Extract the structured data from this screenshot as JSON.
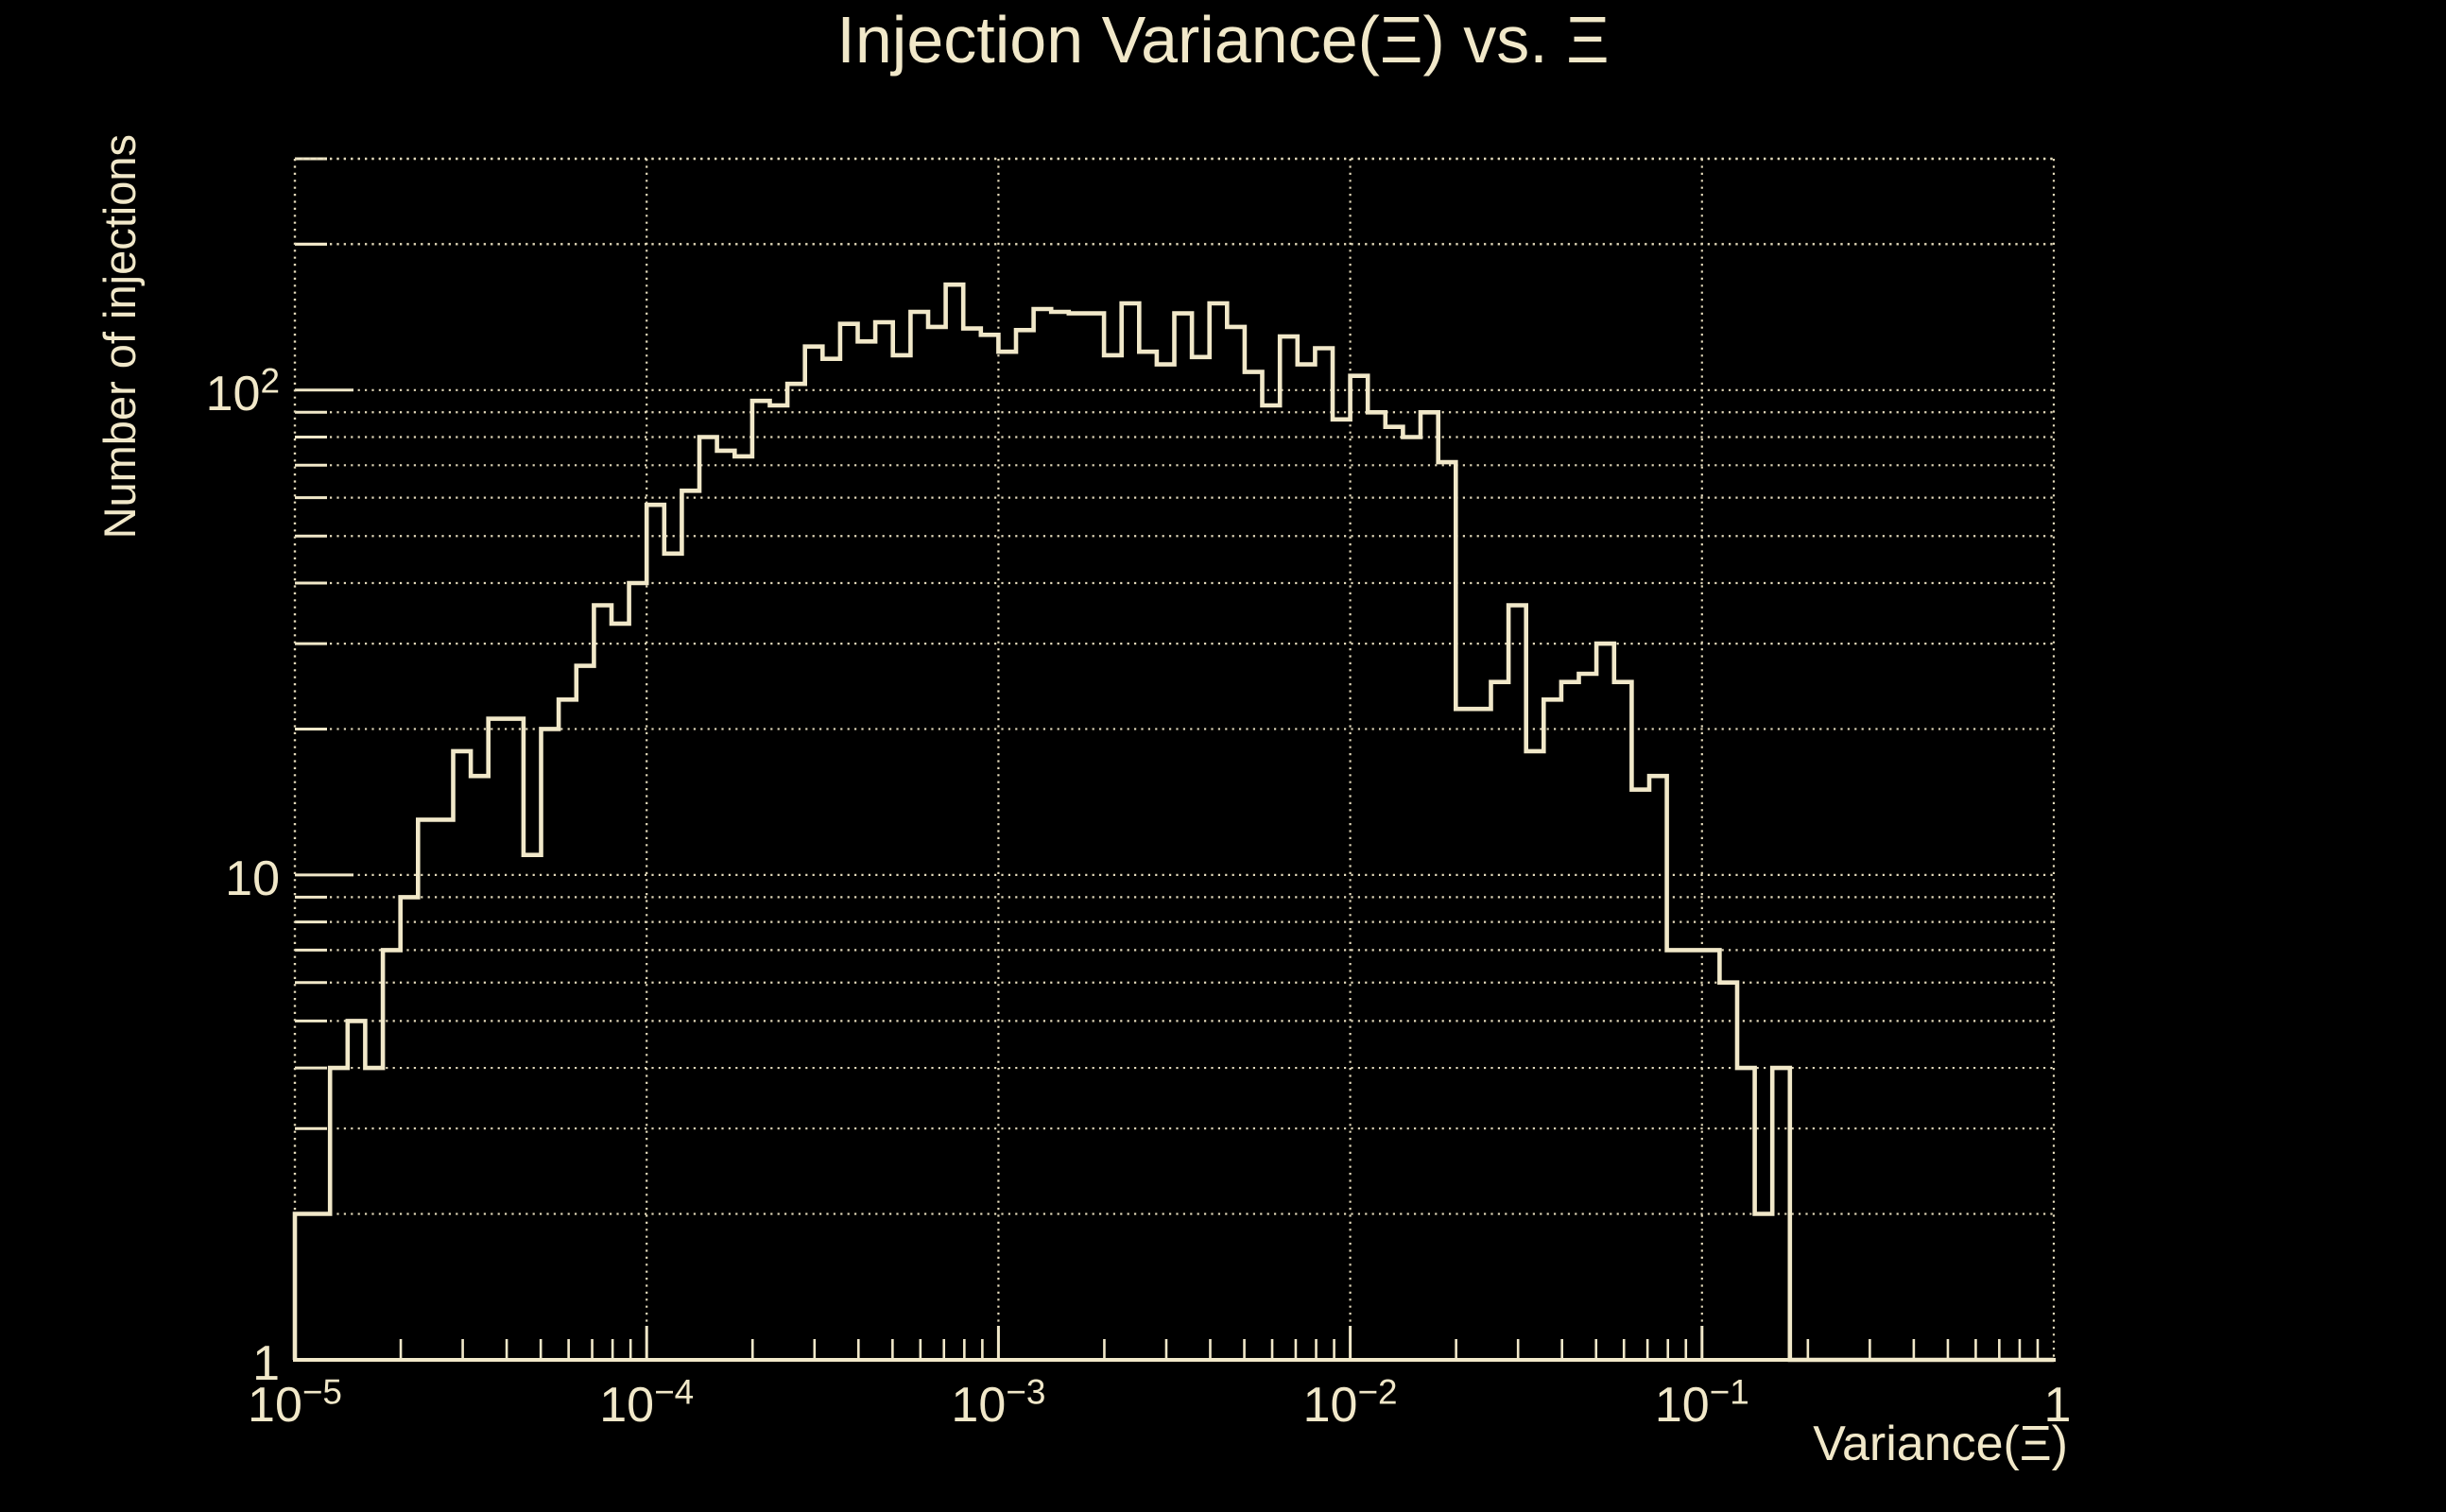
{
  "title": "Injection Variance(Ξ) vs. Ξ",
  "colors": {
    "background": "#000000",
    "foreground": "#F1E8C9",
    "grid": "#E3D9BA"
  },
  "y_axis": {
    "label": "Number of injections",
    "scale": "log",
    "min": 1,
    "max": 300,
    "ticks": [
      {
        "value": 100,
        "base": "10",
        "exp": "2"
      },
      {
        "value": 10,
        "base": "10",
        "exp": ""
      },
      {
        "value": 1,
        "base": "1",
        "exp": ""
      }
    ]
  },
  "x_axis": {
    "label": "Variance(Ξ)",
    "scale": "log",
    "min": 1e-05,
    "max": 1,
    "ticks": [
      {
        "value": 1e-05,
        "base": "10",
        "exp": "−5"
      },
      {
        "value": 0.0001,
        "base": "10",
        "exp": "−4"
      },
      {
        "value": 0.001,
        "base": "10",
        "exp": "−3"
      },
      {
        "value": 0.01,
        "base": "10",
        "exp": "−2"
      },
      {
        "value": 0.1,
        "base": "10",
        "exp": "−1"
      },
      {
        "value": 1,
        "base": "1",
        "exp": ""
      }
    ]
  },
  "chart_data": {
    "type": "line",
    "style": "histogram-step-outline",
    "title": "Injection Variance(Ξ) vs. Ξ",
    "xlabel": "Variance(Ξ)",
    "ylabel": "Number of injections",
    "xscale": "log",
    "yscale": "log",
    "xlim": [
      1e-05,
      1
    ],
    "ylim": [
      1,
      300
    ],
    "grid": "dotted horizontal lines at 2-9 sub-decade steps, dotted vertical lines at decades",
    "legend": "none",
    "bins": 100,
    "bins_per_decade": 20,
    "bin_edges_formula": "x_i = 10^(-5 + i/20), i = 0..100",
    "counts": [
      2,
      2,
      4,
      5,
      4,
      7,
      9,
      13,
      13,
      18,
      16,
      21,
      21,
      11,
      20,
      23,
      27,
      36,
      33,
      40,
      58,
      46,
      62,
      80,
      75,
      73,
      95,
      93,
      103,
      123,
      116,
      137,
      126,
      138,
      118,
      145,
      135,
      165,
      134,
      130,
      120,
      133,
      147,
      145,
      144,
      144,
      118,
      151,
      120,
      113,
      144,
      117,
      151,
      135,
      109,
      93,
      129,
      113,
      122,
      87,
      107,
      90,
      84,
      80,
      90,
      71,
      22,
      22,
      25,
      36,
      18,
      23,
      25,
      26,
      30,
      25,
      15,
      16,
      7,
      7,
      7,
      6,
      4,
      2,
      4,
      0,
      0,
      0,
      0,
      0,
      0,
      0,
      0,
      0,
      0,
      0,
      0,
      0,
      0,
      0
    ]
  }
}
